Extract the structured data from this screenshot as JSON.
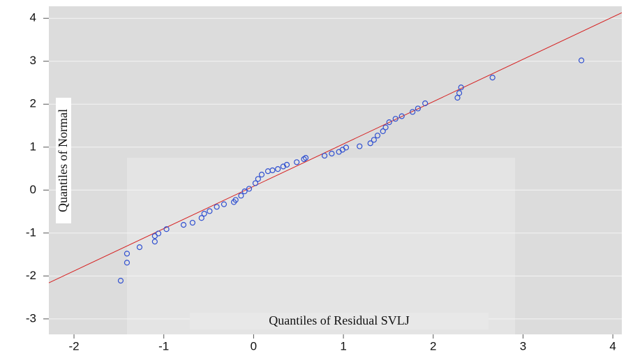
{
  "chart_data": {
    "type": "scatter",
    "x_label": "Quantiles of Residual SVLJ",
    "y_label": "Quantiles of Normal",
    "x": [
      -1.48,
      -1.41,
      -1.41,
      -1.27,
      -1.1,
      -1.1,
      -1.06,
      -0.97,
      -0.78,
      -0.68,
      -0.58,
      -0.55,
      -0.49,
      -0.41,
      -0.33,
      -0.22,
      -0.2,
      -0.14,
      -0.1,
      -0.05,
      0.02,
      0.05,
      0.09,
      0.16,
      0.21,
      0.27,
      0.33,
      0.37,
      0.48,
      0.56,
      0.58,
      0.79,
      0.87,
      0.95,
      0.99,
      1.03,
      1.18,
      1.3,
      1.34,
      1.38,
      1.44,
      1.47,
      1.51,
      1.58,
      1.65,
      1.77,
      1.83,
      1.91,
      2.27,
      2.29,
      2.31,
      2.66,
      3.65
    ],
    "y": [
      -2.11,
      -1.69,
      -1.48,
      -1.33,
      -1.2,
      -1.07,
      -1.01,
      -0.91,
      -0.81,
      -0.76,
      -0.65,
      -0.55,
      -0.49,
      -0.39,
      -0.33,
      -0.28,
      -0.23,
      -0.13,
      -0.03,
      0.03,
      0.16,
      0.26,
      0.36,
      0.44,
      0.46,
      0.49,
      0.55,
      0.59,
      0.65,
      0.72,
      0.75,
      0.8,
      0.85,
      0.89,
      0.94,
      0.99,
      1.02,
      1.09,
      1.17,
      1.27,
      1.37,
      1.46,
      1.58,
      1.66,
      1.72,
      1.82,
      1.9,
      2.02,
      2.15,
      2.26,
      2.39,
      2.62,
      3.02
    ],
    "color": "#3050d0",
    "reference_line": {
      "x": [
        -2.28,
        4.1
      ],
      "y": [
        -2.16,
        4.13
      ],
      "color": "#d62020"
    },
    "xlim": [
      -2.28,
      4.1
    ],
    "ylim": [
      -3.36,
      4.28
    ],
    "xticks": [
      -2,
      -1,
      0,
      1,
      2,
      3,
      4
    ],
    "yticks": [
      -3,
      -2,
      -1,
      0,
      1,
      2,
      3,
      4
    ],
    "grid": true
  }
}
